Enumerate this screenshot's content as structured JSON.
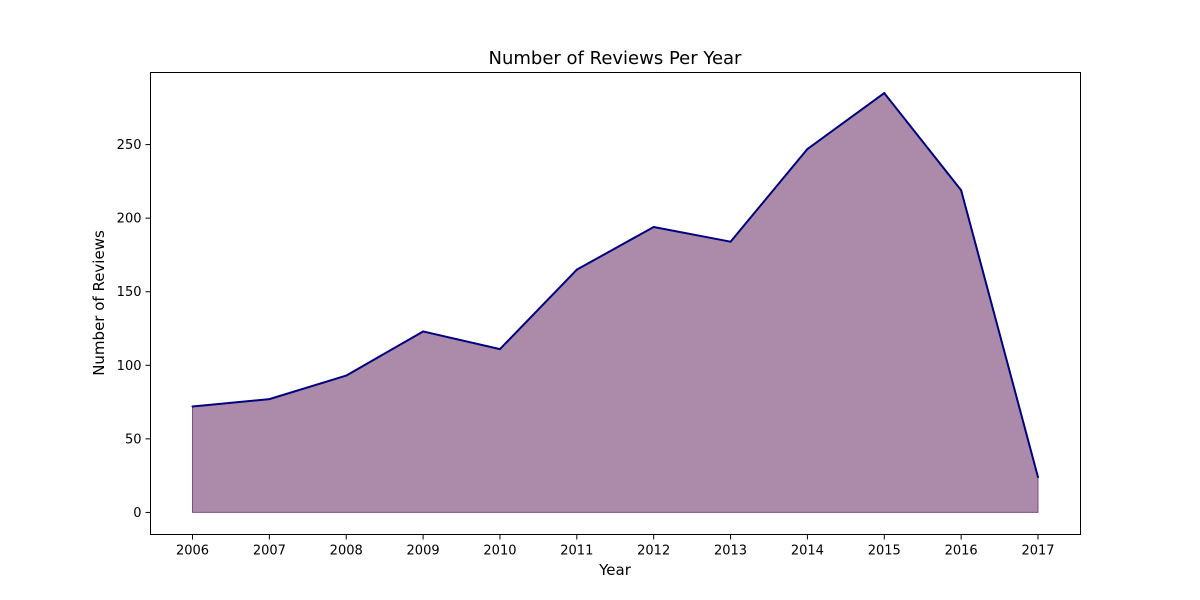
{
  "chart_data": {
    "type": "area",
    "title": "Number of Reviews Per Year",
    "xlabel": "Year",
    "ylabel": "Number of Reviews",
    "x": [
      "2006",
      "2007",
      "2008",
      "2009",
      "2010",
      "2011",
      "2012",
      "2013",
      "2014",
      "2015",
      "2016",
      "2017"
    ],
    "series": [
      {
        "values": [
          72,
          77,
          93,
          123,
          111,
          165,
          194,
          184,
          247,
          285,
          219,
          24
        ]
      }
    ],
    "yticks": [
      0,
      50,
      100,
      150,
      200,
      250
    ],
    "ylim": [
      -15,
      299
    ],
    "grid": false,
    "legend": "none",
    "colors": {
      "line": "#000080",
      "fill": "#8b5e88",
      "fill_opacity": 0.72,
      "fill_edge": "#7d4f7b"
    }
  }
}
